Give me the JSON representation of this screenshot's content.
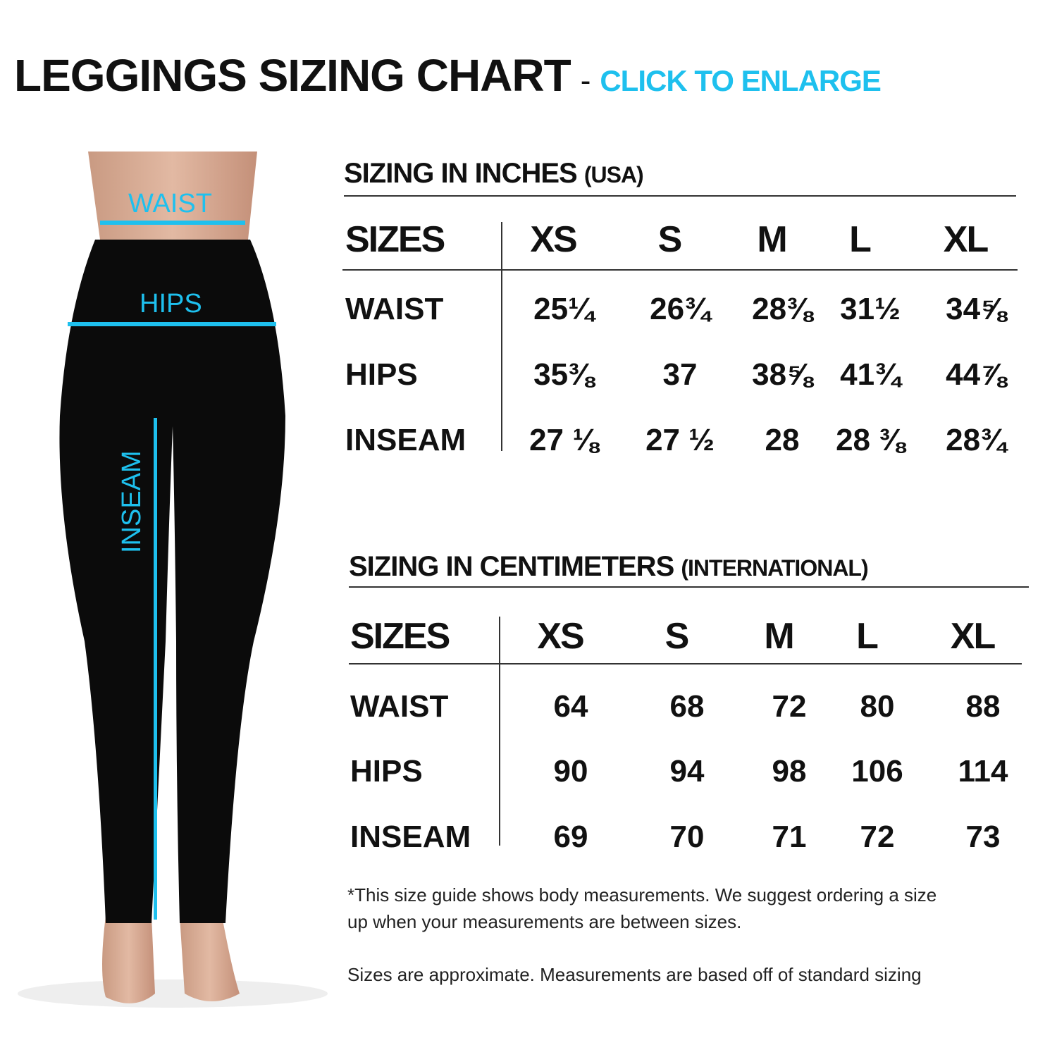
{
  "title": {
    "main": "LEGGINGS SIZING CHART",
    "separator": "-",
    "cta": "CLICK TO ENLARGE"
  },
  "colors": {
    "accent": "#1ec0ee",
    "text": "#111111"
  },
  "figure": {
    "labels": {
      "waist": "WAIST",
      "hips": "HIPS",
      "inseam": "INSEAM"
    }
  },
  "inches": {
    "title": "SIZING IN INCHES",
    "subtitle": "(USA)",
    "sizes_label": "SIZES",
    "sizes": [
      "XS",
      "S",
      "M",
      "L",
      "XL"
    ],
    "rows": [
      {
        "label": "WAIST",
        "values": [
          "25¼",
          "26¾",
          "28⅜",
          "31½",
          "34⅝"
        ]
      },
      {
        "label": "HIPS",
        "values": [
          "35⅜",
          "37",
          "38⅝",
          "41¾",
          "44⅞"
        ]
      },
      {
        "label": "INSEAM",
        "values": [
          "27 ⅛",
          "27 ½",
          "28",
          "28 ⅜",
          "28¾"
        ]
      }
    ]
  },
  "cm": {
    "title": "SIZING IN CENTIMETERS",
    "subtitle": "(INTERNATIONAL)",
    "sizes_label": "SIZES",
    "sizes": [
      "XS",
      "S",
      "M",
      "L",
      "XL"
    ],
    "rows": [
      {
        "label": "WAIST",
        "values": [
          "64",
          "68",
          "72",
          "80",
          "88"
        ]
      },
      {
        "label": "HIPS",
        "values": [
          "90",
          "94",
          "98",
          "106",
          "114"
        ]
      },
      {
        "label": "INSEAM",
        "values": [
          "69",
          "70",
          "71",
          "72",
          "73"
        ]
      }
    ]
  },
  "notes": {
    "line1": "*This size guide shows body measurements. We suggest ordering a size",
    "line2": "up when your measurements are between sizes.",
    "line3": "Sizes are approximate. Measurements are based off of standard sizing"
  }
}
